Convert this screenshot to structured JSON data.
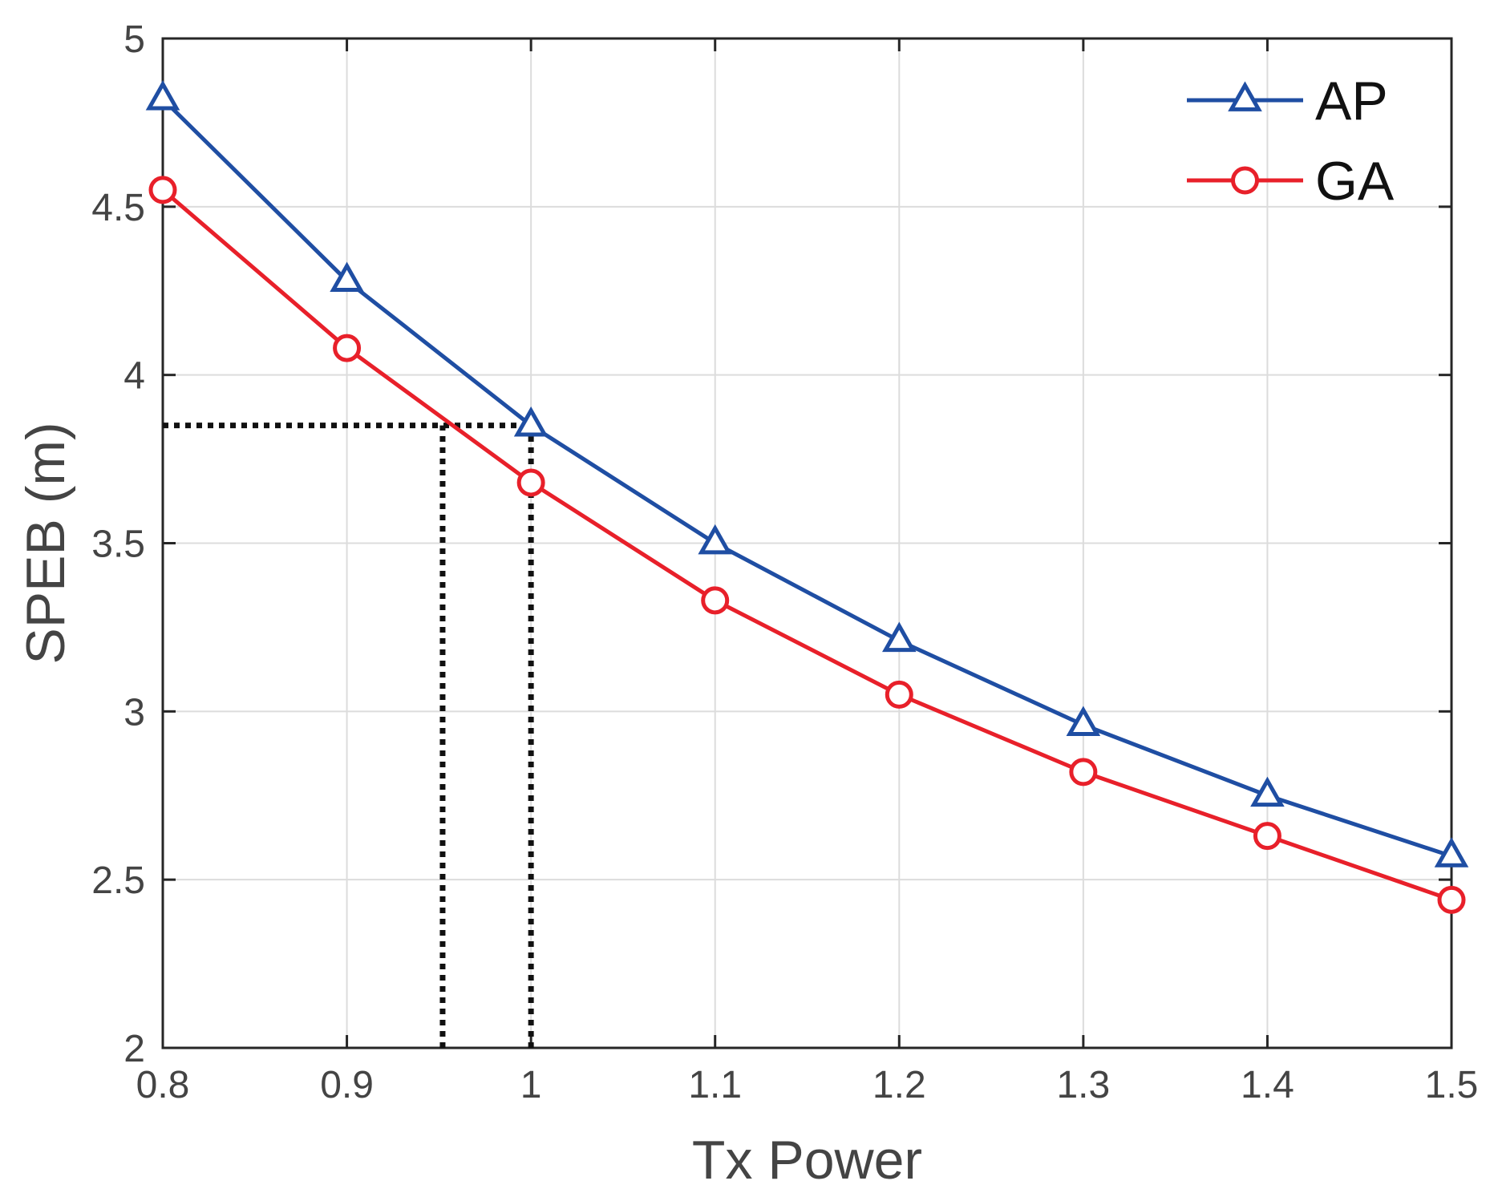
{
  "chart_data": {
    "type": "line",
    "title": "",
    "xlabel": "Tx Power",
    "ylabel": "SPEB (m)",
    "xlim": [
      0.8,
      1.5
    ],
    "ylim": [
      2,
      5
    ],
    "xticks": [
      0.8,
      0.9,
      1.0,
      1.1,
      1.2,
      1.3,
      1.4,
      1.5
    ],
    "xtick_labels": [
      "0.8",
      "0.9",
      "1",
      "1.1",
      "1.2",
      "1.3",
      "1.4",
      "1.5"
    ],
    "yticks": [
      2,
      2.5,
      3,
      3.5,
      4,
      4.5,
      5
    ],
    "ytick_labels": [
      "2",
      "2.5",
      "3",
      "3.5",
      "4",
      "4.5",
      "5"
    ],
    "grid": true,
    "legend_position": "top-right",
    "x": [
      0.8,
      0.9,
      1.0,
      1.1,
      1.2,
      1.3,
      1.4,
      1.5
    ],
    "series": [
      {
        "name": "AP",
        "color": "#1f4ea3",
        "marker": "triangle",
        "values": [
          4.82,
          4.28,
          3.85,
          3.5,
          3.21,
          2.96,
          2.75,
          2.57
        ]
      },
      {
        "name": "GA",
        "color": "#e8202a",
        "marker": "circle",
        "values": [
          4.55,
          4.08,
          3.68,
          3.33,
          3.05,
          2.82,
          2.63,
          2.44
        ]
      }
    ],
    "reference_lines": {
      "color": "#111111",
      "segments": [
        {
          "name": "ref-horizontal",
          "from": [
            0.8,
            3.85
          ],
          "to": [
            1.0,
            3.85
          ]
        },
        {
          "name": "ref-vertical-ga",
          "from": [
            0.952,
            2
          ],
          "to": [
            0.952,
            3.85
          ]
        },
        {
          "name": "ref-vertical-ap",
          "from": [
            1.0,
            2
          ],
          "to": [
            1.0,
            3.85
          ]
        }
      ]
    }
  }
}
